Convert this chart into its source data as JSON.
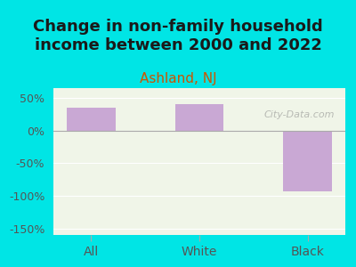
{
  "title": "Change in non-family household\nincome between 2000 and 2022",
  "subtitle": "Ashland, NJ",
  "categories": [
    "All",
    "White",
    "Black"
  ],
  "values": [
    35,
    40,
    -93
  ],
  "bar_color": "#c9a8d4",
  "background_color": "#00e5e5",
  "plot_bg_color": "#f0f5e8",
  "title_color": "#1a1a1a",
  "subtitle_color": "#cc5500",
  "axis_label_color": "#333333",
  "tick_color": "#555555",
  "ylim": [
    -160,
    65
  ],
  "yticks": [
    -150,
    -100,
    -50,
    0,
    50
  ],
  "ytick_labels": [
    "-150%",
    "-100%",
    "-50%",
    "0%",
    "50%"
  ],
  "watermark": "City-Data.com",
  "title_fontsize": 13,
  "subtitle_fontsize": 11
}
